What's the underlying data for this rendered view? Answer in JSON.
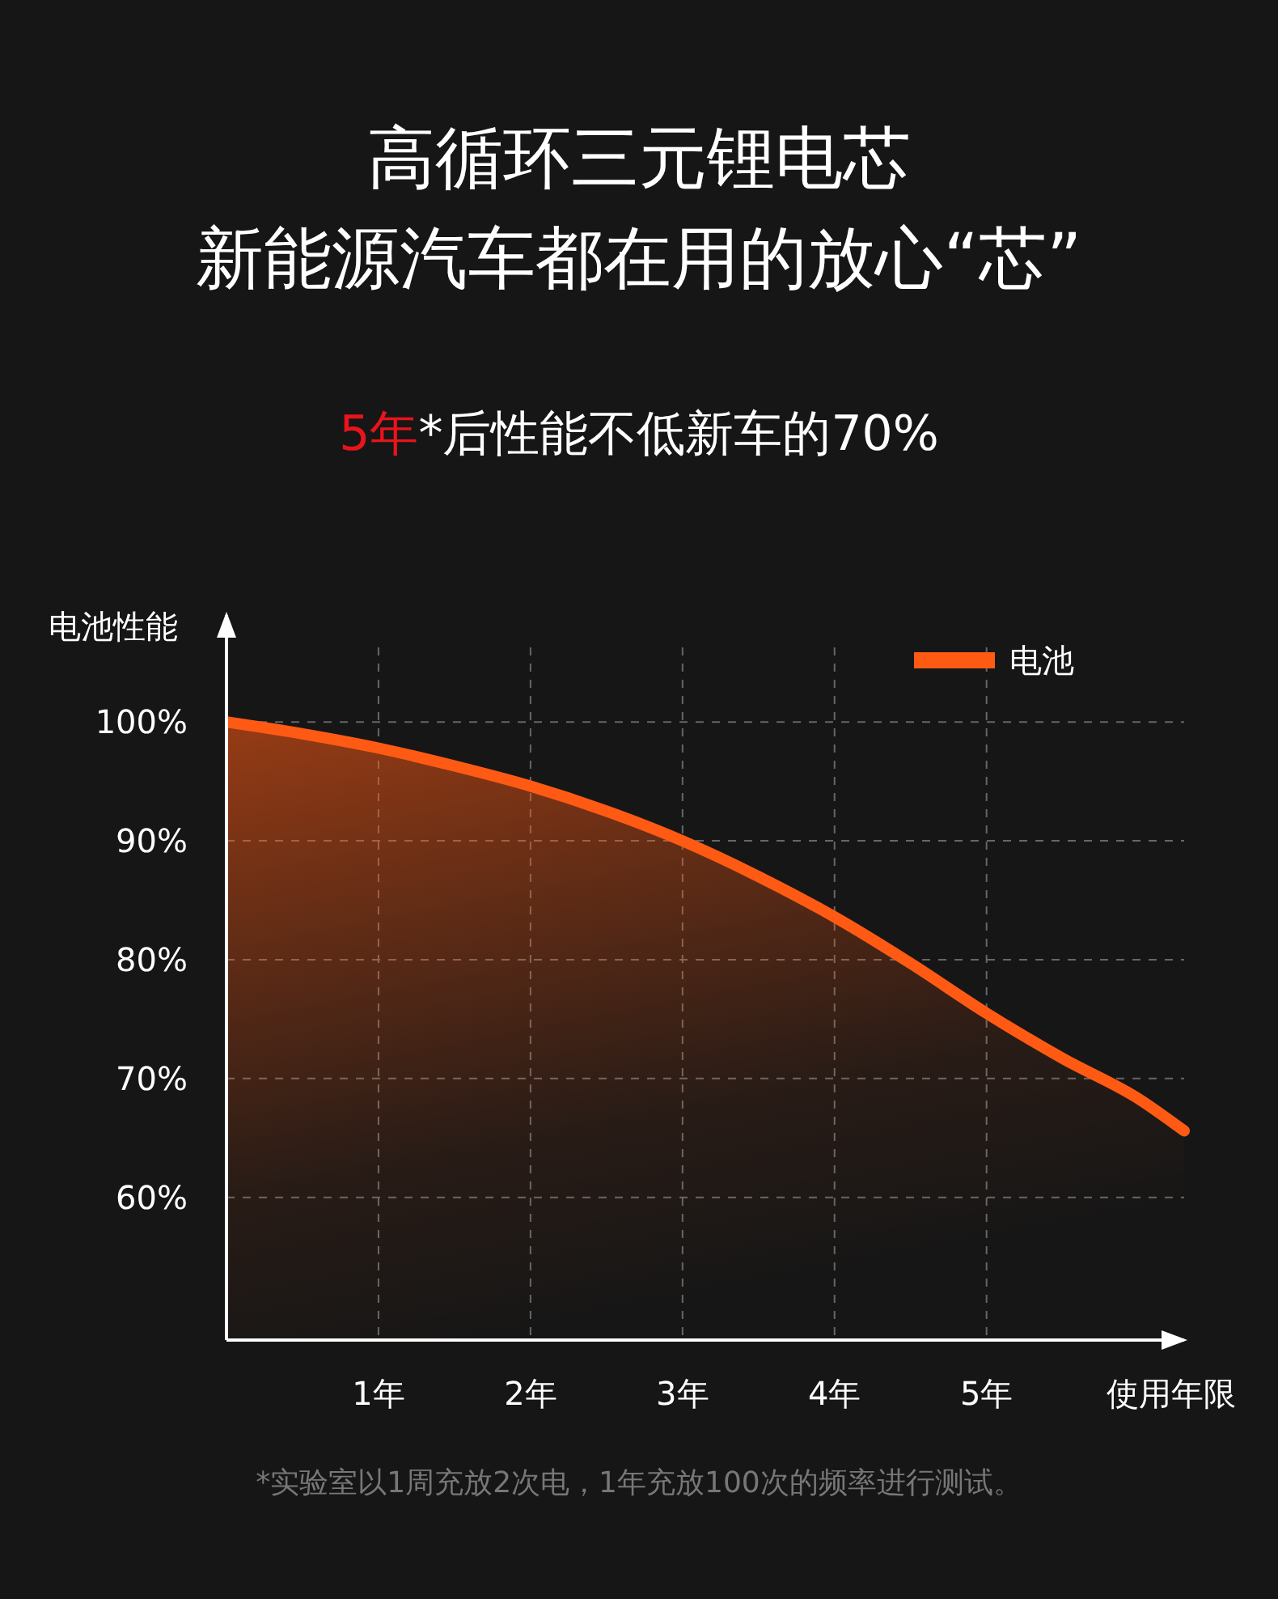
{
  "chart_data": {
    "type": "area",
    "title": "高循环三元锂电芯",
    "subtitle": "新能源汽车都在用的放心“芯”",
    "xlabel": "使用年限",
    "ylabel": "电池性能",
    "x": [
      0,
      0.5,
      1,
      1.5,
      2,
      2.5,
      3,
      3.5,
      4,
      4.5,
      5,
      5.5,
      6,
      6.3
    ],
    "series": [
      {
        "name": "电池",
        "color": "#ff5a14",
        "values": [
          100,
          99,
          97.8,
          96.3,
          94.6,
          92.5,
          90,
          87,
          83.6,
          79.7,
          75.5,
          71.7,
          68.3,
          65.6
        ]
      }
    ],
    "xlim": [
      0,
      6.3
    ],
    "xticks": [
      {
        "value": 1,
        "label": "1年"
      },
      {
        "value": 2,
        "label": "2年"
      },
      {
        "value": 3,
        "label": "3年"
      },
      {
        "value": 4,
        "label": "4年"
      },
      {
        "value": 5,
        "label": "5年"
      }
    ],
    "ylim": [
      48,
      109
    ],
    "yticks": [
      {
        "value": 60,
        "label": "60%"
      },
      {
        "value": 70,
        "label": "70%"
      },
      {
        "value": 80,
        "label": "80%"
      },
      {
        "value": 90,
        "label": "90%"
      },
      {
        "value": 100,
        "label": "100%"
      }
    ],
    "grid": true,
    "legend": "top right",
    "line_style": "solid",
    "marker": "none",
    "annotations": [
      "5年*后性能不低新车的70%",
      "*实验室以1周充放2次电，1年充放100次的频率进行测试。"
    ]
  }
}
